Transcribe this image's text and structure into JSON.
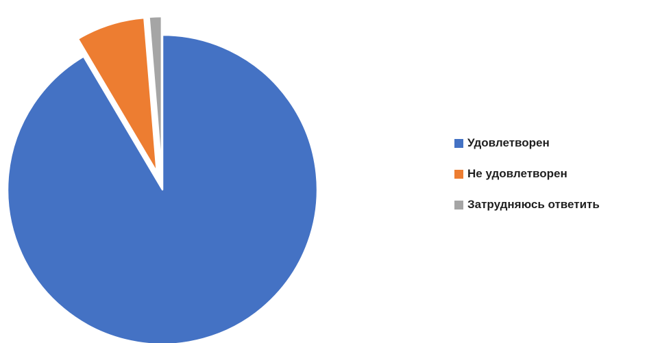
{
  "chart_data": {
    "type": "pie",
    "title": "",
    "slices": [
      {
        "label": "Удовлетворен",
        "value": 91.5,
        "color": "#4472C4",
        "exploded": false
      },
      {
        "label": "Не удовлетворен",
        "value": 7.2,
        "color": "#ED7D31",
        "exploded": true
      },
      {
        "label": "Затрудняюсь ответить",
        "value": 1.3,
        "color": "#A5A5A5",
        "exploded": true
      }
    ],
    "start_angle_deg": 0,
    "direction": "clockwise",
    "legend_position": "right",
    "data_labels": false
  }
}
